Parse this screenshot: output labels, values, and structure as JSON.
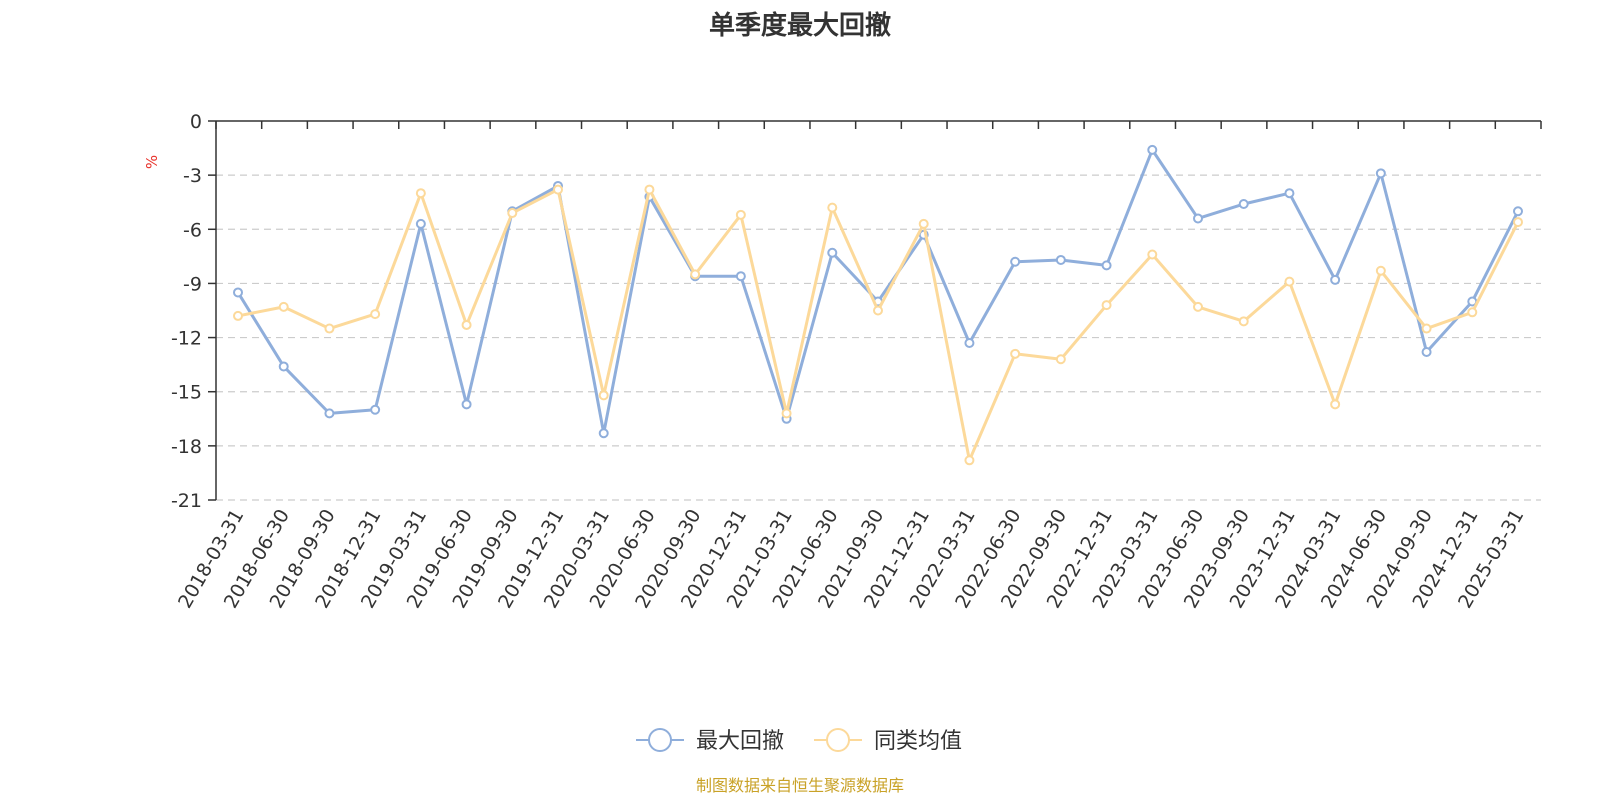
{
  "chart_data": {
    "type": "line",
    "title": "单季度最大回撤",
    "ylabel": "%",
    "ylim": [
      -21,
      0
    ],
    "yticks": [
      0,
      -3,
      -6,
      -9,
      -12,
      -15,
      -18,
      -21
    ],
    "categories": [
      "2018-03-31",
      "2018-06-30",
      "2018-09-30",
      "2018-12-31",
      "2019-03-31",
      "2019-06-30",
      "2019-09-30",
      "2019-12-31",
      "2020-03-31",
      "2020-06-30",
      "2020-09-30",
      "2020-12-31",
      "2021-03-31",
      "2021-06-30",
      "2021-09-30",
      "2021-12-31",
      "2022-03-31",
      "2022-06-30",
      "2022-09-30",
      "2022-12-31",
      "2023-03-31",
      "2023-06-30",
      "2023-09-30",
      "2023-12-31",
      "2024-03-31",
      "2024-06-30",
      "2024-09-30",
      "2024-12-31",
      "2025-03-31"
    ],
    "series": [
      {
        "name": "最大回撤",
        "color": "#8faedb",
        "values": [
          -9.5,
          -13.6,
          -16.2,
          -16.0,
          -5.7,
          -15.7,
          -5.0,
          -3.6,
          -17.3,
          -4.2,
          -8.6,
          -8.6,
          -16.5,
          -7.3,
          -10.0,
          -6.3,
          -12.3,
          -7.8,
          -7.7,
          -8.0,
          -1.6,
          -5.4,
          -4.6,
          -4.0,
          -8.8,
          -2.9,
          -12.8,
          -10.0,
          -5.0
        ]
      },
      {
        "name": "同类均值",
        "color": "#fcd99a",
        "values": [
          -10.8,
          -10.3,
          -11.5,
          -10.7,
          -4.0,
          -11.3,
          -5.1,
          -3.8,
          -15.2,
          -3.8,
          -8.5,
          -5.2,
          -16.2,
          -4.8,
          -10.5,
          -5.7,
          -18.8,
          -12.9,
          -13.2,
          -10.2,
          -7.4,
          -10.3,
          -11.1,
          -8.9,
          -15.7,
          -8.3,
          -11.5,
          -10.6,
          -5.6
        ]
      }
    ],
    "legend_position": "bottom-center",
    "grid": true
  },
  "source": {
    "text": "制图数据来自恒生聚源数据库",
    "color": "#c9a227"
  },
  "unit_color": "#e8322b"
}
